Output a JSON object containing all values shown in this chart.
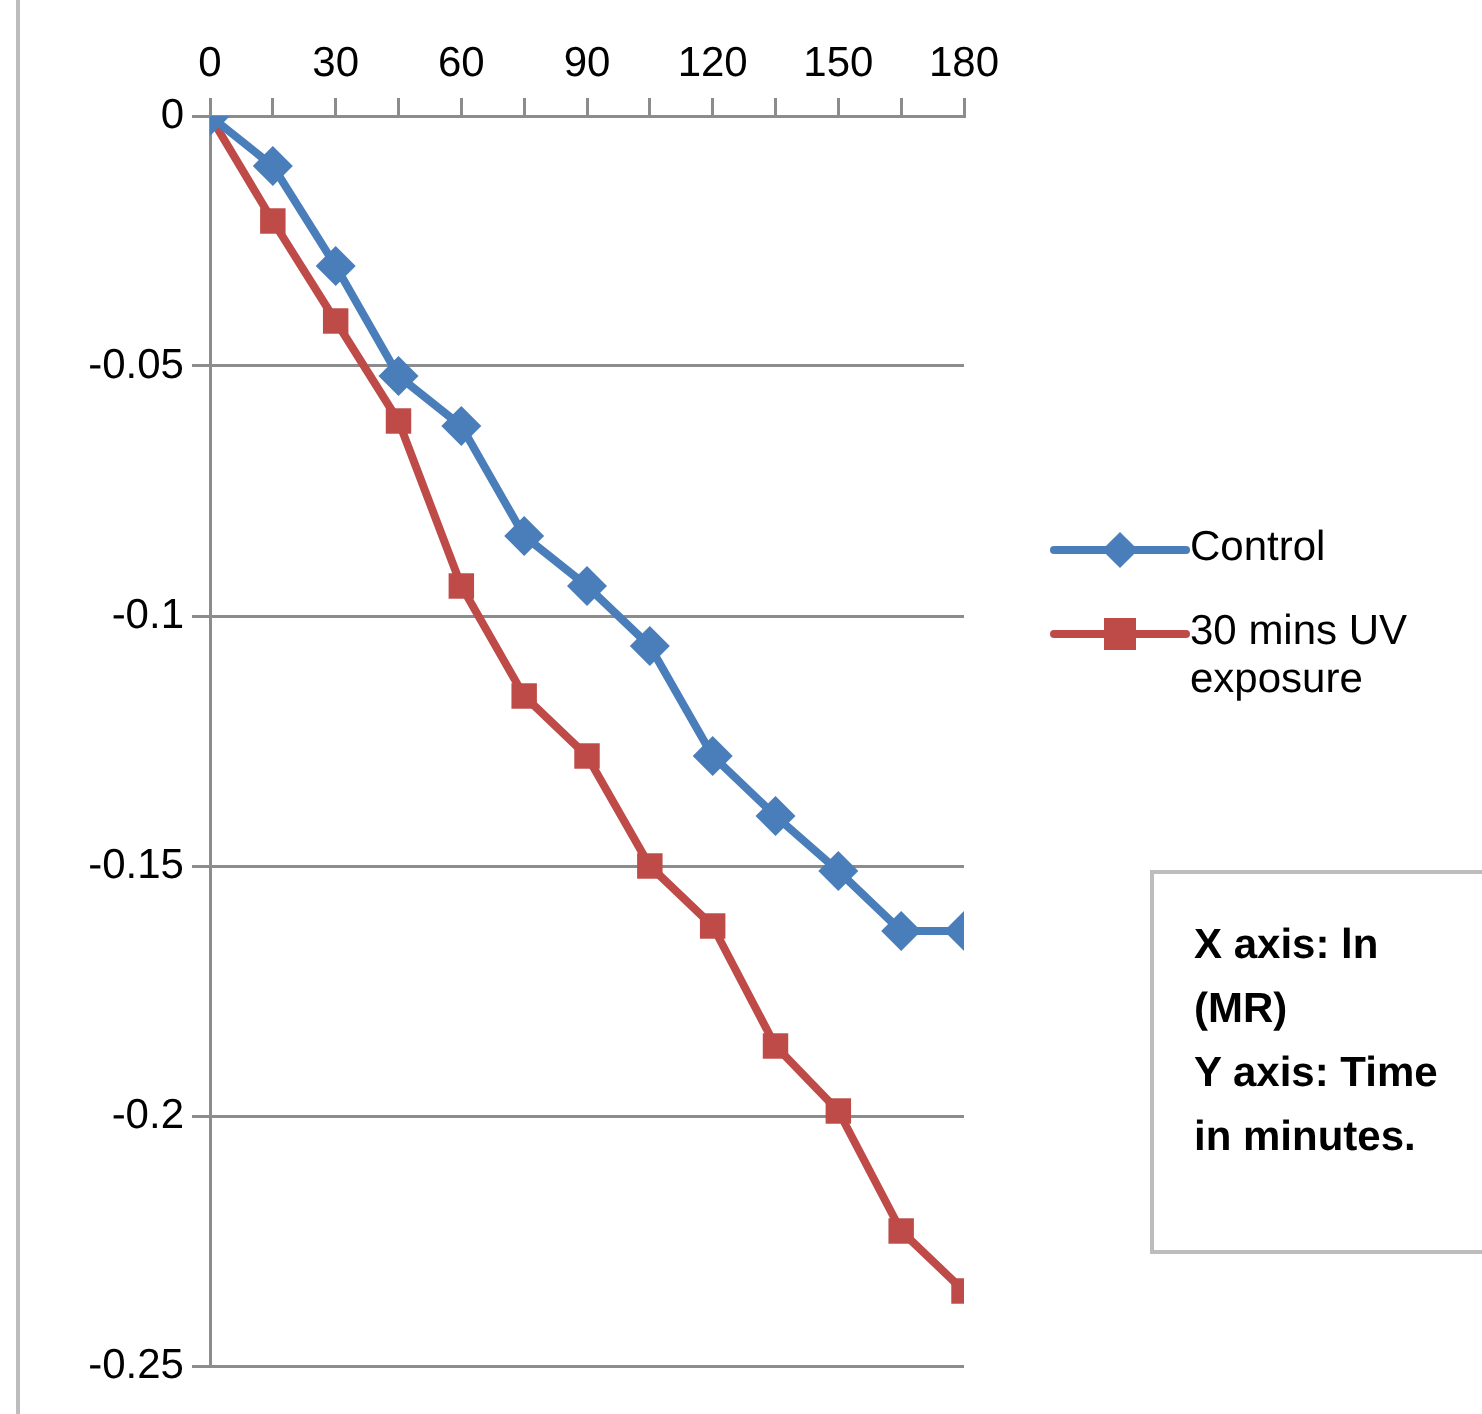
{
  "chart_data": {
    "type": "line",
    "x": [
      0,
      15,
      30,
      45,
      60,
      75,
      90,
      105,
      120,
      135,
      150,
      165,
      180
    ],
    "series": [
      {
        "name": "Control",
        "color": "#4a7ebb",
        "marker": "diamond",
        "values": [
          0,
          -0.01,
          -0.03,
          -0.052,
          -0.062,
          -0.084,
          -0.094,
          -0.106,
          -0.128,
          -0.14,
          -0.151,
          -0.163,
          -0.163
        ]
      },
      {
        "name": "30 mins UV exposure",
        "color": "#be4b48",
        "marker": "square",
        "values": [
          0,
          -0.021,
          -0.041,
          -0.061,
          -0.094,
          -0.116,
          -0.128,
          -0.15,
          -0.162,
          -0.186,
          -0.199,
          -0.223,
          -0.235
        ]
      }
    ],
    "xlim": [
      0,
      180
    ],
    "xticks": [
      0,
      {
        "value": 15,
        "label": null
      },
      30,
      {
        "value": 45,
        "label": null
      },
      60,
      {
        "value": 75,
        "label": null
      },
      90,
      {
        "value": 105,
        "label": null
      },
      120,
      {
        "value": 135,
        "label": null
      },
      150,
      {
        "value": 165,
        "label": null
      },
      180
    ],
    "ylim": [
      -0.25,
      0
    ],
    "yticks": [
      0,
      -0.05,
      -0.1,
      -0.15,
      -0.2,
      -0.25
    ],
    "grid": "y",
    "legend": "right",
    "line_style": "solid",
    "annotations": [
      "X axis: ln (MR)",
      "Y axis: Time in minutes."
    ]
  }
}
